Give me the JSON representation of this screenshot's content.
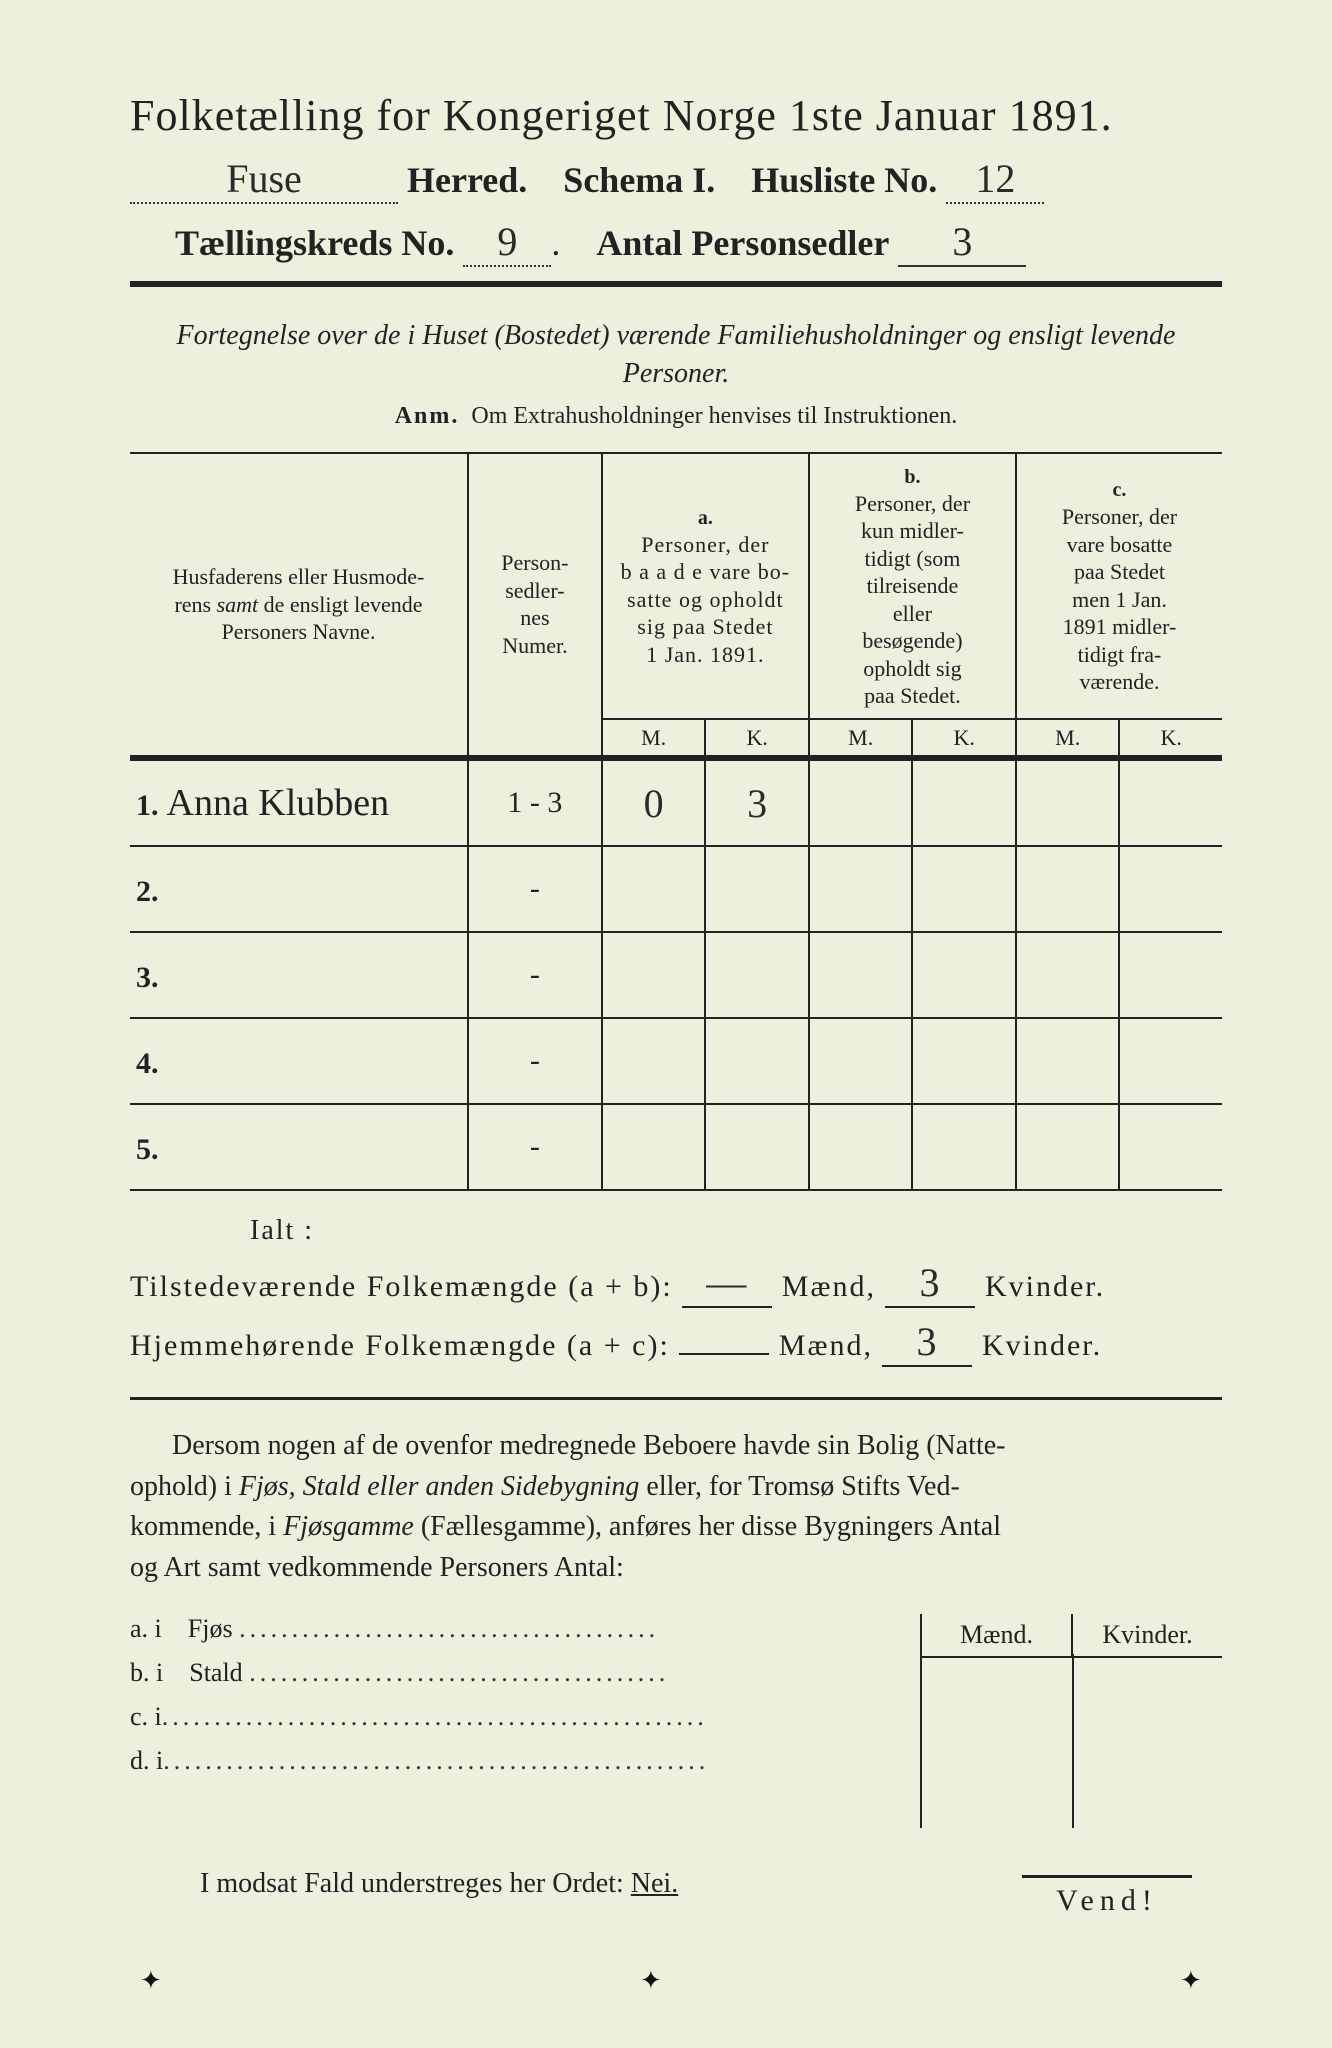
{
  "header": {
    "title": "Folketælling for Kongeriget Norge 1ste Januar 1891.",
    "herred_value": "Fuse",
    "herred_label": "Herred.",
    "schema_label": "Schema I.",
    "husliste_label": "Husliste No.",
    "husliste_value": "12",
    "kreds_label": "Tællingskreds No.",
    "kreds_value": "9",
    "antal_label": "Antal Personsedler",
    "antal_value": "3"
  },
  "subtitle": "Fortegnelse over de i Huset (Bostedet) værende Familiehusholdninger og ensligt levende Personer.",
  "anm_label": "Anm.",
  "anm_text": "Om Extrahusholdninger henvises til Instruktionen.",
  "columns": {
    "col1": "Husfaderens eller Husmoderens samt de ensligt levende Personers Navne.",
    "col2": "Person-sedler-nes Numer.",
    "a_label": "a.",
    "a_text": "Personer, der baade vare bosatte og opholdt sig paa Stedet 1 Jan. 1891.",
    "b_label": "b.",
    "b_text": "Personer, der kun midlertidigt (som tilreisende eller besøgende) opholdt sig paa Stedet.",
    "c_label": "c.",
    "c_text": "Personer, der vare bosatte paa Stedet men 1 Jan. 1891 midlertidigt fraværende.",
    "m": "M.",
    "k": "K."
  },
  "rows": [
    {
      "n": "1.",
      "name": "Anna Klubben",
      "pnum": "1 - 3",
      "a_m": "0",
      "a_k": "3",
      "b_m": "",
      "b_k": "",
      "c_m": "",
      "c_k": ""
    },
    {
      "n": "2.",
      "name": "",
      "pnum": "-",
      "a_m": "",
      "a_k": "",
      "b_m": "",
      "b_k": "",
      "c_m": "",
      "c_k": ""
    },
    {
      "n": "3.",
      "name": "",
      "pnum": "-",
      "a_m": "",
      "a_k": "",
      "b_m": "",
      "b_k": "",
      "c_m": "",
      "c_k": ""
    },
    {
      "n": "4.",
      "name": "",
      "pnum": "-",
      "a_m": "",
      "a_k": "",
      "b_m": "",
      "b_k": "",
      "c_m": "",
      "c_k": ""
    },
    {
      "n": "5.",
      "name": "",
      "pnum": "-",
      "a_m": "",
      "a_k": "",
      "b_m": "",
      "b_k": "",
      "c_m": "",
      "c_k": ""
    }
  ],
  "ialt": "Ialt :",
  "sum1": {
    "label": "Tilstedeværende Folkemængde (a + b):",
    "m": "—",
    "m_label": "Mænd,",
    "k": "3",
    "k_label": "Kvinder."
  },
  "sum2": {
    "label": "Hjemmehørende Folkemængde (a + c):",
    "m": "",
    "m_label": "Mænd,",
    "k": "3",
    "k_label": "Kvinder."
  },
  "para": "Dersom nogen af de ovenfor medregnede Beboere havde sin Bolig (Natteophold) i Fjøs, Stald eller anden Sidebygning eller, for Tromsø Stifts Vedkommende, i Fjøsgamme (Fællesgamme), anføres her disse Bygningers Antal og Art samt vedkommende Personers Antal:",
  "abcd": {
    "hdr_m": "Mænd.",
    "hdr_k": "Kvinder.",
    "rows": [
      {
        "label": "a. i",
        "name": "Fjøs"
      },
      {
        "label": "b. i",
        "name": "Stald"
      },
      {
        "label": "c. i",
        "name": ""
      },
      {
        "label": "d. i",
        "name": ""
      }
    ]
  },
  "modsat": "I modsat Fald understreges her Ordet:",
  "nei": "Nei.",
  "vend": "Vend!"
}
